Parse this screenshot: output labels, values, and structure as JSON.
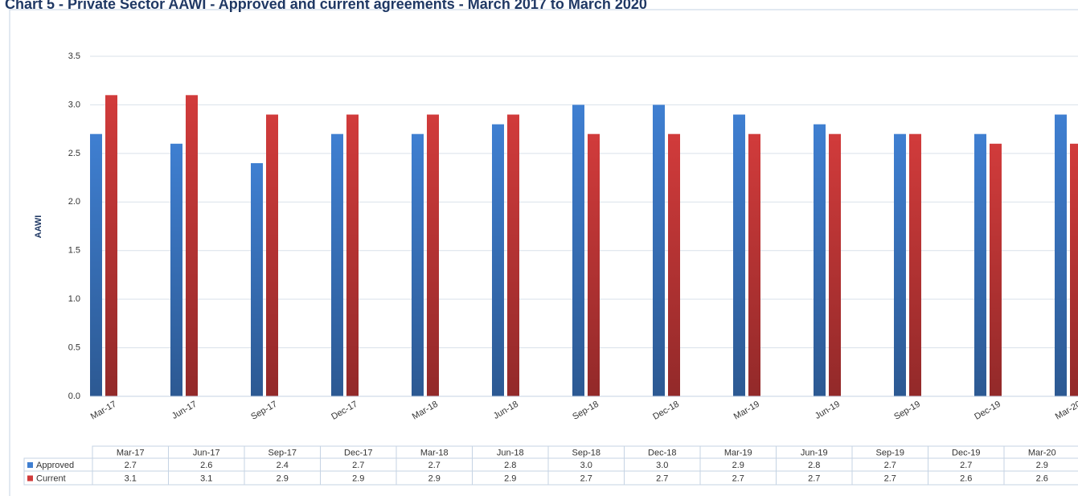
{
  "chart_data": {
    "type": "bar",
    "title": "Chart 5 - Private Sector AAWI - Approved and current agreements - March 2017 to March 2020",
    "y_label": "AAWI",
    "categories": [
      "Mar-17",
      "Jun-17",
      "Sep-17",
      "Dec-17",
      "Mar-18",
      "Jun-18",
      "Sep-18",
      "Dec-18",
      "Mar-19",
      "Jun-19",
      "Sep-19",
      "Dec-19",
      "Mar-20"
    ],
    "series": [
      {
        "name": "Approved",
        "color": "#3f7fd1",
        "values": [
          2.7,
          2.6,
          2.4,
          2.7,
          2.7,
          2.8,
          3.0,
          3.0,
          2.9,
          2.8,
          2.7,
          2.7,
          2.9
        ],
        "value_labels": [
          "2.7",
          "2.6",
          "2.4",
          "2.7",
          "2.7",
          "2.8",
          "3.0",
          "3.0",
          "2.9",
          "2.8",
          "2.7",
          "2.7",
          "2.9"
        ]
      },
      {
        "name": "Current",
        "color": "#d13b3b",
        "values": [
          3.1,
          3.1,
          2.9,
          2.9,
          2.9,
          2.9,
          2.7,
          2.7,
          2.7,
          2.7,
          2.7,
          2.6,
          2.6
        ],
        "value_labels": [
          "3.1",
          "3.1",
          "2.9",
          "2.9",
          "2.9",
          "2.9",
          "2.7",
          "2.7",
          "2.7",
          "2.7",
          "2.7",
          "2.6",
          "2.6"
        ]
      }
    ],
    "ylim": [
      0,
      3.5
    ],
    "yticks": [
      {
        "value": 0,
        "label": "0.0"
      },
      0.5,
      {
        "value": 1,
        "label": "1.0"
      },
      1.5,
      {
        "value": 2,
        "label": "2.0"
      },
      2.5,
      {
        "value": 3,
        "label": "3.0"
      },
      3.5
    ],
    "grid": true
  }
}
